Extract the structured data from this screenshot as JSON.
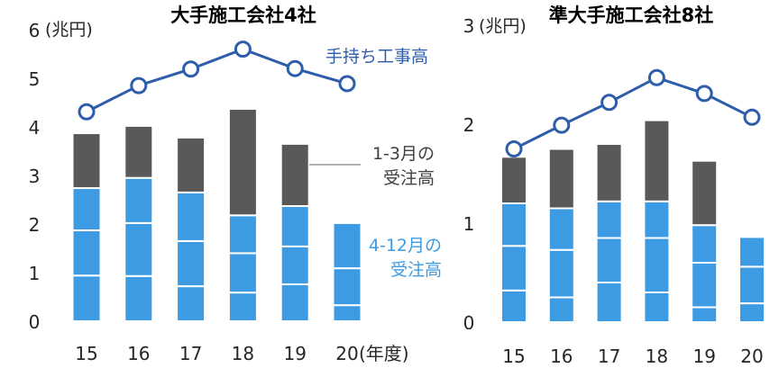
{
  "chart_data": [
    {
      "type": "bar",
      "stacked": true,
      "title": "大手施工会社4社",
      "ylabel": "(兆円)",
      "xlabel": "(年度)",
      "categories": [
        "15",
        "16",
        "17",
        "18",
        "19",
        "20"
      ],
      "ylim": [
        0,
        6
      ],
      "yticks": [
        0,
        1,
        2,
        3,
        4,
        5,
        6
      ],
      "grid": false,
      "series": [
        {
          "name_lines": [
            "4-12月の",
            "受注高"
          ],
          "type": "bar",
          "color": "#3d9be3",
          "label_color": "#3d9be3",
          "parts": [
            [
              0.94,
              0.93,
              0.87
            ],
            [
              0.93,
              1.09,
              0.93
            ],
            [
              0.72,
              0.93,
              1.0
            ],
            [
              0.59,
              0.81,
              0.78
            ],
            [
              0.76,
              0.78,
              0.83
            ],
            [
              0.33,
              0.76,
              0.93
            ]
          ]
        },
        {
          "name_lines": [
            "1-3月の",
            "受注高"
          ],
          "type": "bar",
          "color": "#595959",
          "label_color": "#404040",
          "values": [
            1.13,
            1.07,
            1.13,
            2.19,
            1.28,
            null
          ]
        },
        {
          "name": "手持ち工事高",
          "type": "line",
          "color": "#2e5eaa",
          "label_color": "#2e5eaa",
          "values": [
            4.31,
            4.85,
            5.19,
            5.6,
            5.2,
            4.89
          ]
        }
      ]
    },
    {
      "type": "bar",
      "stacked": true,
      "title": "準大手施工会社8社",
      "ylabel": "(兆円)",
      "categories": [
        "15",
        "16",
        "17",
        "18",
        "19",
        "20"
      ],
      "ylim": [
        0,
        3
      ],
      "yticks": [
        0,
        1,
        2,
        3
      ],
      "grid": false,
      "series": [
        {
          "type": "bar",
          "color": "#3d9be3",
          "parts": [
            [
              0.32,
              0.45,
              0.43
            ],
            [
              0.25,
              0.48,
              0.42
            ],
            [
              0.4,
              0.45,
              0.37
            ],
            [
              0.3,
              0.55,
              0.37
            ],
            [
              0.15,
              0.45,
              0.38
            ],
            [
              0.19,
              0.37,
              0.3
            ]
          ]
        },
        {
          "type": "bar",
          "color": "#595959",
          "values": [
            0.47,
            0.6,
            0.58,
            0.82,
            0.65,
            null
          ]
        },
        {
          "type": "line",
          "color": "#2e5eaa",
          "values": [
            1.75,
            1.99,
            2.22,
            2.47,
            2.31,
            2.07
          ]
        }
      ]
    }
  ]
}
